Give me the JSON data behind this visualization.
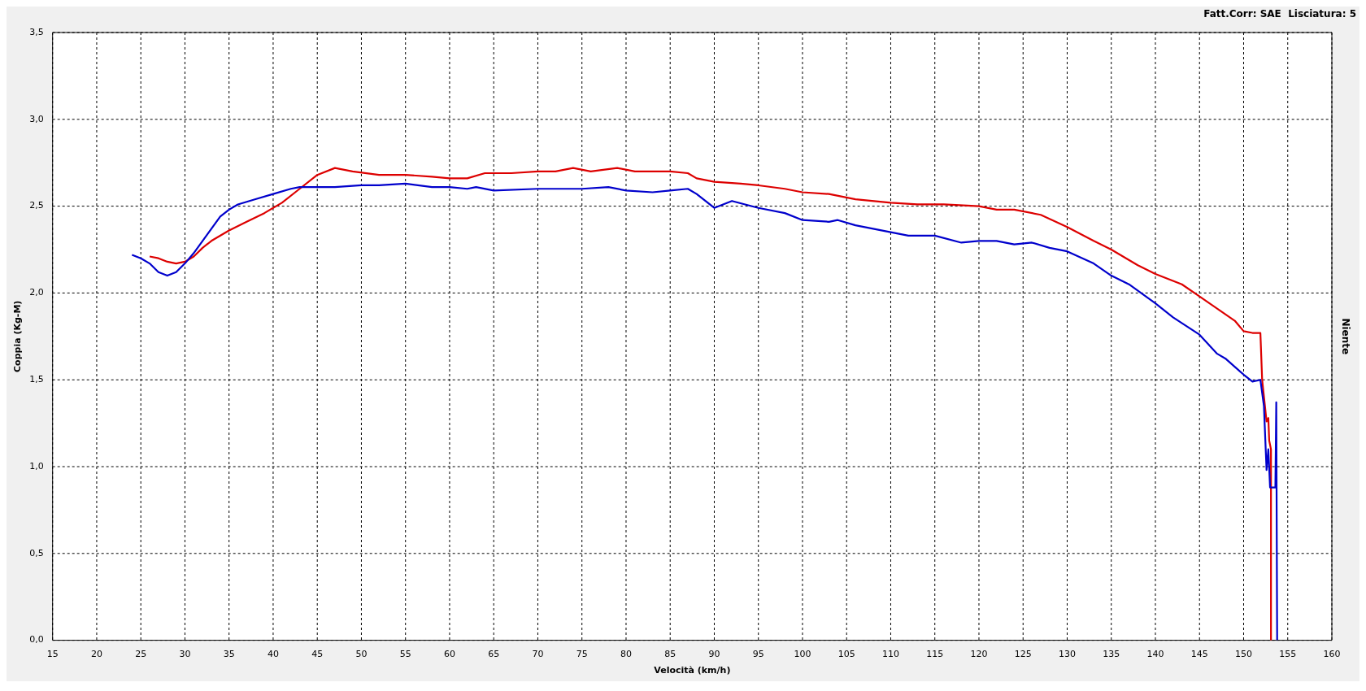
{
  "chart_data": {
    "type": "line",
    "xlabel": "Velocità (km/h)",
    "ylabel": "Coppia (Kg-M)",
    "y2label": "Niente",
    "annotations": [
      "Fatt.Corr: SAE  Lisciatura: 5"
    ],
    "xlim": [
      15,
      160
    ],
    "xticks": [
      15,
      20,
      25,
      30,
      35,
      40,
      45,
      50,
      55,
      60,
      65,
      70,
      75,
      80,
      85,
      90,
      95,
      100,
      105,
      110,
      115,
      120,
      125,
      130,
      135,
      140,
      145,
      150,
      155,
      160
    ],
    "ylim": [
      0,
      3.5
    ],
    "yticks": [
      {
        "value": 0,
        "label": "0,0"
      },
      {
        "value": 0.5,
        "label": "0,5"
      },
      {
        "value": 1,
        "label": "1,0"
      },
      {
        "value": 1.5,
        "label": "1,5"
      },
      {
        "value": 2,
        "label": "2,0"
      },
      {
        "value": 2.5,
        "label": "2,5"
      },
      {
        "value": 3,
        "label": "3,0"
      },
      {
        "value": 3.5,
        "label": "3,5"
      }
    ],
    "grid": true,
    "marker": "none",
    "line_style": "solid",
    "series": [
      {
        "color": "#0000cc",
        "x": [
          24,
          25,
          26,
          27,
          28,
          29,
          30,
          31,
          32,
          33,
          34,
          35,
          36,
          38,
          40,
          42,
          43,
          45,
          47,
          50,
          52,
          55,
          58,
          60,
          62,
          63,
          65,
          70,
          75,
          78,
          80,
          83,
          85,
          87,
          88,
          90,
          91,
          92,
          95,
          98,
          100,
          103,
          104,
          106,
          110,
          112,
          115,
          118,
          120,
          122,
          124,
          126,
          128,
          130,
          133,
          135,
          137,
          140,
          142,
          145,
          147,
          148,
          150,
          151,
          151.9,
          152.3,
          152.6,
          152.8,
          153,
          153.6,
          153.7,
          153.8
        ],
        "values": [
          2.22,
          2.2,
          2.17,
          2.12,
          2.1,
          2.12,
          2.17,
          2.23,
          2.3,
          2.37,
          2.44,
          2.48,
          2.51,
          2.54,
          2.57,
          2.6,
          2.61,
          2.61,
          2.61,
          2.62,
          2.62,
          2.63,
          2.61,
          2.61,
          2.6,
          2.61,
          2.59,
          2.6,
          2.6,
          2.61,
          2.59,
          2.58,
          2.59,
          2.6,
          2.57,
          2.49,
          2.51,
          2.53,
          2.49,
          2.46,
          2.42,
          2.41,
          2.42,
          2.39,
          2.35,
          2.33,
          2.33,
          2.29,
          2.3,
          2.3,
          2.28,
          2.29,
          2.26,
          2.24,
          2.17,
          2.1,
          2.05,
          1.94,
          1.86,
          1.76,
          1.65,
          1.62,
          1.53,
          1.49,
          1.5,
          1.35,
          0.98,
          1.1,
          0.88,
          0.88,
          1.37,
          0
        ]
      },
      {
        "color": "#dd0000",
        "x": [
          26,
          27,
          28,
          29,
          30,
          31,
          32,
          33,
          35,
          37,
          39,
          41,
          43,
          45,
          47,
          49,
          52,
          55,
          58,
          60,
          62,
          64,
          67,
          70,
          72,
          74,
          76,
          79,
          81,
          85,
          87,
          88,
          90,
          93,
          95,
          98,
          100,
          103,
          106,
          110,
          113,
          116,
          120,
          122,
          124,
          127,
          130,
          133,
          135,
          138,
          140,
          143,
          145,
          147,
          149,
          150,
          151,
          151.9,
          152.1,
          152.6,
          152.8,
          152.9,
          153.1,
          153.1
        ],
        "values": [
          2.21,
          2.2,
          2.18,
          2.17,
          2.18,
          2.21,
          2.26,
          2.3,
          2.36,
          2.41,
          2.46,
          2.52,
          2.6,
          2.68,
          2.72,
          2.7,
          2.68,
          2.68,
          2.67,
          2.66,
          2.66,
          2.69,
          2.69,
          2.7,
          2.7,
          2.72,
          2.7,
          2.72,
          2.7,
          2.7,
          2.69,
          2.66,
          2.64,
          2.63,
          2.62,
          2.6,
          2.58,
          2.57,
          2.54,
          2.52,
          2.51,
          2.51,
          2.5,
          2.48,
          2.48,
          2.45,
          2.38,
          2.3,
          2.25,
          2.16,
          2.11,
          2.05,
          1.98,
          1.91,
          1.84,
          1.78,
          1.77,
          1.77,
          1.5,
          1.26,
          1.28,
          1.15,
          1.1,
          0
        ]
      }
    ]
  }
}
